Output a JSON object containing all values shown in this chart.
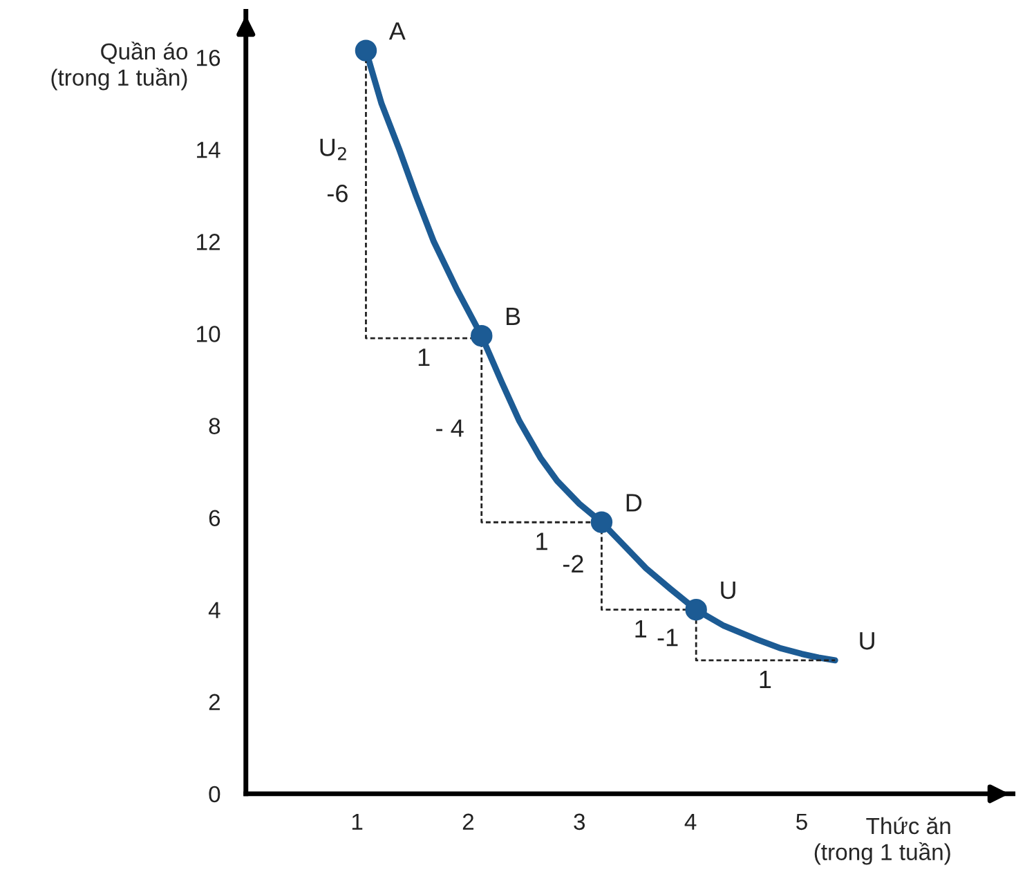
{
  "chart_data": {
    "type": "line",
    "xlabel": "Thức ăn\n(trong 1 tuần)",
    "ylabel": "Quần áo\n(trong 1 tuần)",
    "series": [
      {
        "color": "#1c5b94",
        "marker": "none",
        "line_style": "solid",
        "x": [
          1.08,
          1.22,
          1.38,
          1.53,
          1.69,
          1.9,
          2.12,
          2.3,
          2.46,
          2.65,
          2.8,
          3.0,
          3.2,
          3.4,
          3.6,
          3.82,
          4.05,
          4.3,
          4.6,
          4.8,
          5.0,
          5.15,
          5.3
        ],
        "values": [
          16.15,
          15.0,
          14.0,
          13.0,
          12.0,
          10.95,
          9.95,
          8.95,
          8.1,
          7.3,
          6.8,
          6.3,
          5.9,
          5.4,
          4.9,
          4.45,
          4.0,
          3.65,
          3.35,
          3.17,
          3.04,
          2.96,
          2.9
        ]
      },
      {
        "type": "scatter",
        "color": "#1c5b94",
        "marker": "circle",
        "x": [
          1.08,
          2.12,
          3.2,
          4.05
        ],
        "values": [
          16.15,
          9.95,
          5.9,
          4.0
        ]
      },
      {
        "color": "#222222",
        "marker": "none",
        "line_style": "dashed",
        "x": [
          1.08,
          1.08,
          2.12,
          2.12,
          3.2,
          3.2,
          4.05,
          4.05,
          5.3
        ],
        "values": [
          16.15,
          9.9,
          9.9,
          5.9,
          5.9,
          4.0,
          4.0,
          2.9,
          2.9
        ]
      }
    ],
    "xlim": [
      0,
      6.9
    ],
    "xticks": [
      1,
      2,
      3,
      4,
      5
    ],
    "ylim": [
      0,
      17
    ],
    "yticks": [
      0,
      2,
      4,
      6,
      8,
      10,
      12,
      14,
      16
    ],
    "grid": false,
    "legend": false,
    "annotations": [
      {
        "text": "A",
        "x": 1.08,
        "y": 16.15
      },
      {
        "text": "B",
        "x": 2.12,
        "y": 9.95
      },
      {
        "text": "D",
        "x": 3.2,
        "y": 5.9
      },
      {
        "text": "U",
        "x": 4.05,
        "y": 4.0
      },
      {
        "text": "U",
        "x": 5.3,
        "y": 2.9
      },
      {
        "text": "U$_{2}$",
        "x": 1.08,
        "y": 14.0
      },
      {
        "text": "-6",
        "x": 1.08,
        "y": 13.0
      },
      {
        "text": "1",
        "x": 1.6,
        "y": 9.9
      },
      {
        "text": "- 4",
        "x": 2.12,
        "y": 7.9
      },
      {
        "text": "1",
        "x": 2.66,
        "y": 5.9
      },
      {
        "text": "-2",
        "x": 3.2,
        "y": 4.95
      },
      {
        "text": "1",
        "x": 3.55,
        "y": 4.0
      },
      {
        "text": "-1",
        "x": 4.05,
        "y": 3.35
      },
      {
        "text": "1",
        "x": 4.67,
        "y": 2.9
      }
    ]
  }
}
